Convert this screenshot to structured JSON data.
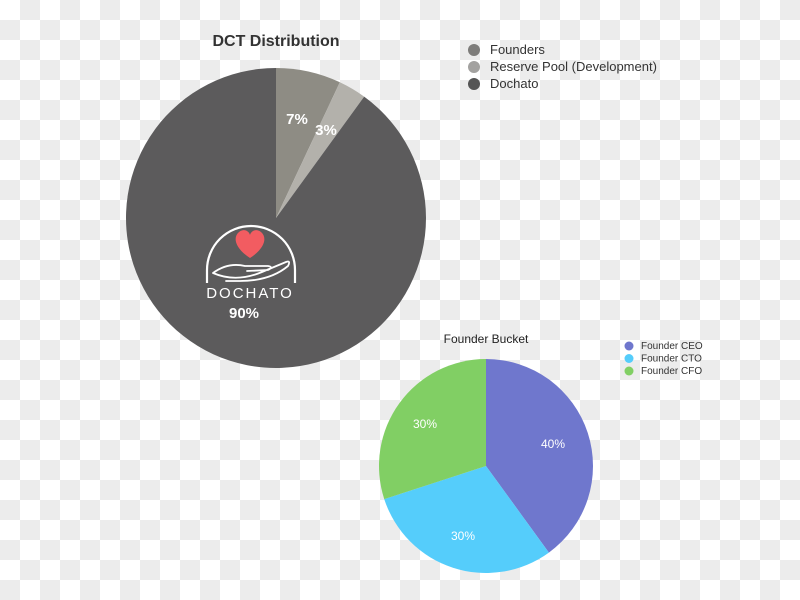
{
  "chart_data": [
    {
      "type": "pie",
      "title": "DCT Distribution",
      "categories": [
        "Founders",
        "Reserve Pool (Development)",
        "Dochato"
      ],
      "values": [
        7,
        3,
        90
      ],
      "labels": [
        "7%",
        "3%",
        "90%"
      ],
      "colors": [
        "#8e8c84",
        "#b3b1ab",
        "#5c5b5c"
      ],
      "legend_colors": [
        "#7d7c7a",
        "#a3a2a0",
        "#555555"
      ],
      "start": "top, clockwise",
      "legend_position": "top-right",
      "logo": {
        "text": "DOCHATO",
        "heart_color": "#f25c61"
      }
    },
    {
      "type": "pie",
      "title": "Founder Bucket",
      "categories": [
        "Founder CEO",
        "Founder CTO",
        "Founder CFO"
      ],
      "values": [
        40,
        30,
        30
      ],
      "labels": [
        "40%",
        "30%",
        "30%"
      ],
      "colors": [
        "#6f77cd",
        "#55cdfb",
        "#81cf64"
      ],
      "start": "top, clockwise",
      "legend_position": "top-right"
    }
  ]
}
